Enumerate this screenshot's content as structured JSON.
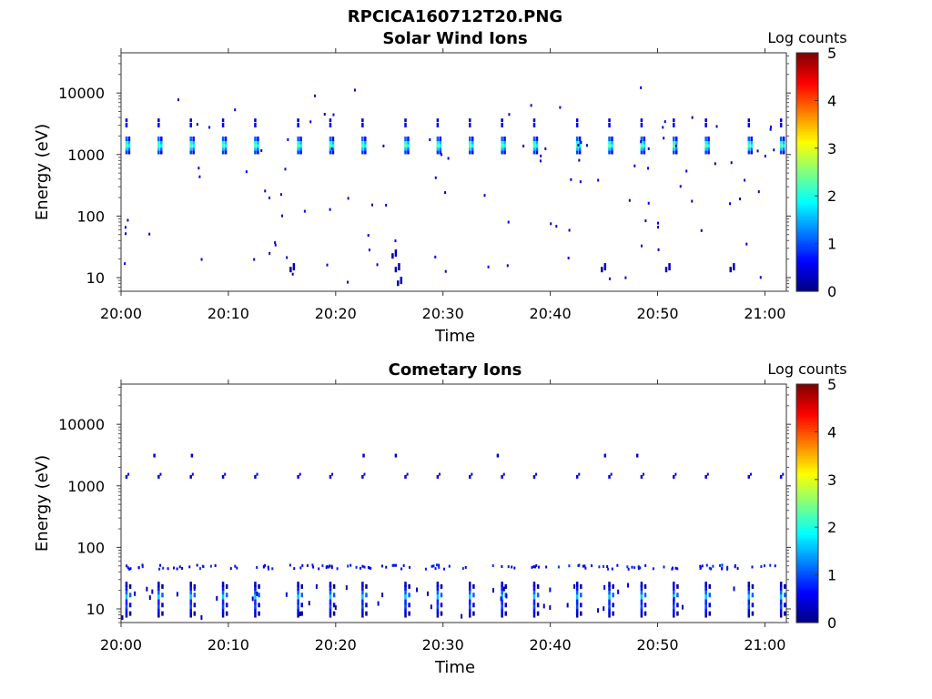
{
  "figure_title": "RPCICA160712T20.PNG",
  "colorbar": {
    "label": "Log counts",
    "ticks": [
      "0",
      "1",
      "2",
      "3",
      "4",
      "5"
    ],
    "colormap": "jet",
    "min": 0,
    "max": 5
  },
  "chart_data": [
    {
      "type": "heatmap",
      "title": "Solar Wind Ions",
      "xlabel": "Time",
      "ylabel": "Energy (eV)",
      "x_ticks": [
        "20:00",
        "20:10",
        "20:20",
        "20:30",
        "20:40",
        "20:50",
        "21:00"
      ],
      "y_ticks": [
        "10",
        "100",
        "1000",
        "10000"
      ],
      "y_scale": "log",
      "ylim": [
        6,
        45000
      ],
      "xlim": [
        "20:00",
        "21:02"
      ],
      "colorbar_label": "Log counts",
      "dominant_features": {
        "main_band_energy_eV": 1400,
        "main_band_log_counts": [
          1.5,
          2.5
        ],
        "secondary_band_energy_eV": 3000,
        "secondary_band_log_counts": [
          0.5,
          1.0
        ],
        "burst_times": [
          "20:00",
          "20:03",
          "20:06",
          "20:09",
          "20:12",
          "20:16",
          "20:19",
          "20:22",
          "20:26",
          "20:29",
          "20:32",
          "20:35",
          "20:38",
          "20:42",
          "20:45",
          "20:48",
          "20:51",
          "20:54",
          "20:58",
          "21:01"
        ]
      }
    },
    {
      "type": "heatmap",
      "title": "Cometary Ions",
      "xlabel": "Time",
      "ylabel": "Energy (eV)",
      "x_ticks": [
        "20:00",
        "20:10",
        "20:20",
        "20:30",
        "20:40",
        "20:50",
        "21:00"
      ],
      "y_ticks": [
        "10",
        "100",
        "1000",
        "10000"
      ],
      "y_scale": "log",
      "ylim": [
        6,
        45000
      ],
      "xlim": [
        "20:00",
        "21:02"
      ],
      "colorbar_label": "Log counts",
      "dominant_features": {
        "low_energy_band_eV": [
          7,
          25
        ],
        "low_energy_log_counts": [
          0.2,
          2.0
        ],
        "mid_band_energy_eV": 48,
        "mid_band_log_counts": [
          0.5,
          1.0
        ],
        "high_band_energy_eV": 1400,
        "high_band_log_counts": [
          0.5,
          0.8
        ]
      }
    }
  ]
}
